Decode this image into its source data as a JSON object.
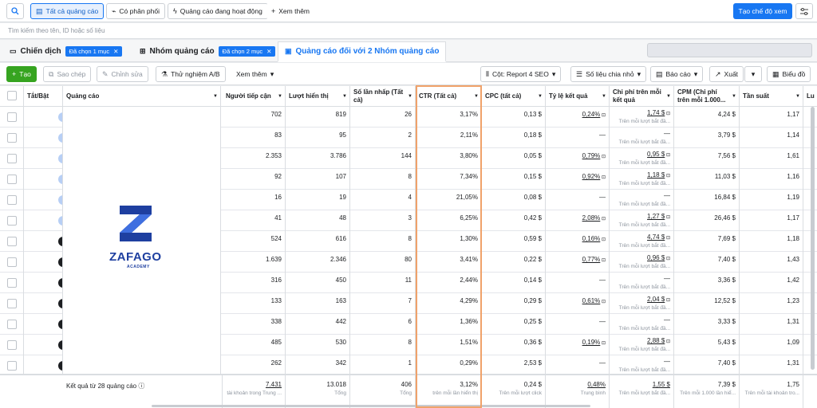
{
  "topbar": {
    "scope_tabs": [
      "Tất cả quảng cáo",
      "Có phân phối",
      "Quảng cáo đang hoạt động"
    ],
    "more_label": "Xem thêm",
    "create_view_label": "Tạo chế độ xem"
  },
  "search": {
    "placeholder": "Tìm kiếm theo tên, ID hoặc số liệu"
  },
  "levels": {
    "campaign": {
      "label": "Chiến dịch",
      "chip": "Đã chọn 1 mục"
    },
    "adset": {
      "label": "Nhóm quảng cáo",
      "chip": "Đã chọn 2 mục"
    },
    "ads": {
      "label": "Quảng cáo đối với 2 Nhóm quảng cáo"
    }
  },
  "toolbar": {
    "create": "Tạo",
    "duplicate": "Sao chép",
    "edit": "Chỉnh sửa",
    "ab_test": "Thử nghiệm A/B",
    "more": "Xem thêm",
    "columns": "Cột: Report 4 SEO",
    "breakdown": "Số liệu chia nhỏ",
    "reports": "Báo cáo",
    "export": "Xuất",
    "chart": "Biểu đồ"
  },
  "columns": [
    "Tắt/Bật",
    "Quảng cáo",
    "Người tiếp cận",
    "Lượt hiển thị",
    "Số lần nhấp (Tất cả)",
    "CTR (Tất cả)",
    "CPC (tất cả)",
    "Tỷ lệ kết quả",
    "Chi phí trên mỗi kết quả",
    "CPM (Chi phí trên mỗi 1.000...",
    "Tần suất",
    "Lu"
  ],
  "brand": {
    "name": "ZAFAGO",
    "tagline": "ACADEMY",
    "color": "#1e3fa0"
  },
  "rows": [
    {
      "on": true,
      "reach": "702",
      "impr": "819",
      "clicks": "26",
      "ctr": "3,17%",
      "cpc": "0,13 $",
      "rate": "0,24%",
      "cpr": "1,74 $",
      "cpr_sub": "Trên mỗi lượt bắt đầ...",
      "cpm": "4,24 $",
      "freq": "1,17"
    },
    {
      "on": true,
      "reach": "83",
      "impr": "95",
      "clicks": "2",
      "ctr": "2,11%",
      "cpc": "0,18 $",
      "rate": "—",
      "cpr": "—",
      "cpr_sub": "Trên mỗi lượt bắt đầ...",
      "cpm": "3,79 $",
      "freq": "1,14"
    },
    {
      "on": true,
      "reach": "2.353",
      "impr": "3.786",
      "clicks": "144",
      "ctr": "3,80%",
      "cpc": "0,05 $",
      "rate": "0,79%",
      "cpr": "0,95 $",
      "cpr_sub": "Trên mỗi lượt bắt đầ...",
      "cpm": "7,56 $",
      "freq": "1,61"
    },
    {
      "on": true,
      "reach": "92",
      "impr": "107",
      "clicks": "8",
      "ctr": "7,34%",
      "cpc": "0,15 $",
      "rate": "0,92%",
      "cpr": "1,18 $",
      "cpr_sub": "Trên mỗi lượt bắt đầ...",
      "cpm": "11,03 $",
      "freq": "1,16"
    },
    {
      "on": true,
      "reach": "16",
      "impr": "19",
      "clicks": "4",
      "ctr": "21,05%",
      "cpc": "0,08 $",
      "rate": "—",
      "cpr": "—",
      "cpr_sub": "Trên mỗi lượt bắt đầ...",
      "cpm": "16,84 $",
      "freq": "1,19"
    },
    {
      "on": true,
      "reach": "41",
      "impr": "48",
      "clicks": "3",
      "ctr": "6,25%",
      "cpc": "0,42 $",
      "rate": "2,08%",
      "cpr": "1,27 $",
      "cpr_sub": "Trên mỗi lượt bắt đầ...",
      "cpm": "26,46 $",
      "freq": "1,17"
    },
    {
      "on": false,
      "reach": "524",
      "impr": "616",
      "clicks": "8",
      "ctr": "1,30%",
      "cpc": "0,59 $",
      "rate": "0,16%",
      "cpr": "4,74 $",
      "cpr_sub": "Trên mỗi lượt bắt đầ...",
      "cpm": "7,69 $",
      "freq": "1,18"
    },
    {
      "on": false,
      "reach": "1.639",
      "impr": "2.346",
      "clicks": "80",
      "ctr": "3,41%",
      "cpc": "0,22 $",
      "rate": "0,77%",
      "cpr": "0,96 $",
      "cpr_sub": "Trên mỗi lượt bắt đầ...",
      "cpm": "7,40 $",
      "freq": "1,43"
    },
    {
      "on": false,
      "reach": "316",
      "impr": "450",
      "clicks": "11",
      "ctr": "2,44%",
      "cpc": "0,14 $",
      "rate": "—",
      "cpr": "—",
      "cpr_sub": "Trên mỗi lượt bắt đầ...",
      "cpm": "3,36 $",
      "freq": "1,42"
    },
    {
      "on": false,
      "reach": "133",
      "impr": "163",
      "clicks": "7",
      "ctr": "4,29%",
      "cpc": "0,29 $",
      "rate": "0,61%",
      "cpr": "2,04 $",
      "cpr_sub": "Trên mỗi lượt bắt đầ...",
      "cpm": "12,52 $",
      "freq": "1,23"
    },
    {
      "on": false,
      "reach": "338",
      "impr": "442",
      "clicks": "6",
      "ctr": "1,36%",
      "cpc": "0,25 $",
      "rate": "—",
      "cpr": "—",
      "cpr_sub": "Trên mỗi lượt bắt đầ...",
      "cpm": "3,33 $",
      "freq": "1,31"
    },
    {
      "on": false,
      "reach": "485",
      "impr": "530",
      "clicks": "8",
      "ctr": "1,51%",
      "cpc": "0,36 $",
      "rate": "0,19%",
      "cpr": "2,88 $",
      "cpr_sub": "Trên mỗi lượt bắt đầ...",
      "cpm": "5,43 $",
      "freq": "1,09"
    },
    {
      "on": false,
      "reach": "262",
      "impr": "342",
      "clicks": "1",
      "ctr": "0,29%",
      "cpc": "2,53 $",
      "rate": "—",
      "cpr": "—",
      "cpr_sub": "Trên mỗi lượt bắt đầ...",
      "cpm": "7,40 $",
      "freq": "1,31"
    }
  ],
  "footer": {
    "label": "Kết quả từ 28 quảng cáo",
    "reach": "7.431",
    "reach_sub": "tài khoản trong Trung ...",
    "impr": "13.018",
    "impr_sub": "Tổng",
    "clicks": "406",
    "clicks_sub": "Tổng",
    "ctr": "3,12%",
    "ctr_sub": "trên mỗi lần hiển thị",
    "cpc": "0,24 $",
    "cpc_sub": "Trên mỗi lượt click",
    "rate": "0,48%",
    "rate_sub": "Trung bình",
    "cpr": "1,55 $",
    "cpr_sub": "Trên mỗi lượt bắt đầ...",
    "cpm": "7,39 $",
    "cpm_sub": "Trên mỗi 1.000 lần hiể...",
    "freq": "1,75",
    "freq_sub": "Trên mỗi tài khoản tro..."
  },
  "colors": {
    "accent": "#1877f2",
    "create_green": "#36a420",
    "highlight": "#f0a26a"
  }
}
